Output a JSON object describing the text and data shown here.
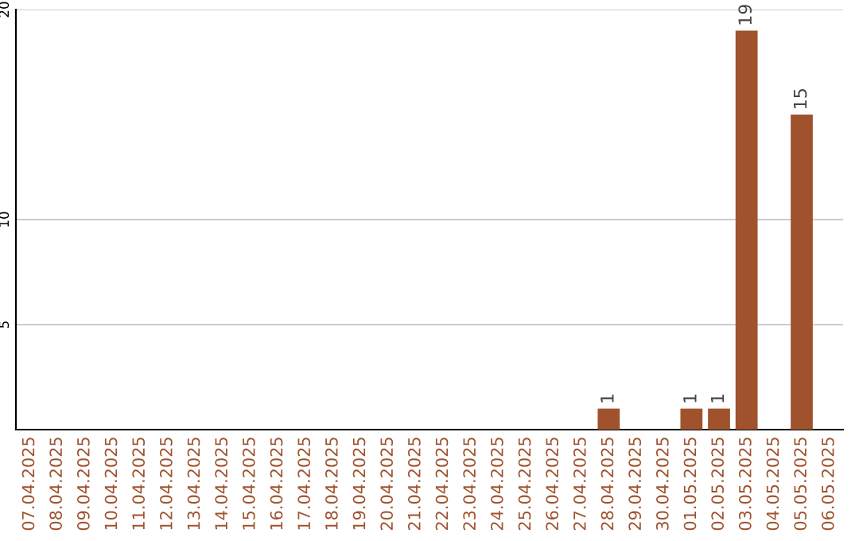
{
  "chart_data": {
    "type": "bar",
    "categories": [
      "07.04.2025",
      "08.04.2025",
      "09.04.2025",
      "10.04.2025",
      "11.04.2025",
      "12.04.2025",
      "13.04.2025",
      "14.04.2025",
      "15.04.2025",
      "16.04.2025",
      "17.04.2025",
      "18.04.2025",
      "19.04.2025",
      "20.04.2025",
      "21.04.2025",
      "22.04.2025",
      "23.04.2025",
      "24.04.2025",
      "25.04.2025",
      "26.04.2025",
      "27.04.2025",
      "28.04.2025",
      "29.04.2025",
      "30.04.2025",
      "01.05.2025",
      "02.05.2025",
      "03.05.2025",
      "04.05.2025",
      "05.05.2025",
      "06.05.2025"
    ],
    "values": [
      0,
      0,
      0,
      0,
      0,
      0,
      0,
      0,
      0,
      0,
      0,
      0,
      0,
      0,
      0,
      0,
      0,
      0,
      0,
      0,
      0,
      1,
      0,
      0,
      1,
      1,
      19,
      0,
      15,
      0
    ],
    "value_labels": [
      null,
      null,
      null,
      null,
      null,
      null,
      null,
      null,
      null,
      null,
      null,
      null,
      null,
      null,
      null,
      null,
      null,
      null,
      null,
      null,
      null,
      "1",
      null,
      null,
      "1",
      "1",
      "19",
      null,
      "15",
      null
    ],
    "color": "#a0522d",
    "ylim": [
      0,
      20
    ],
    "yticks": [
      5,
      10,
      20
    ],
    "grid": "y"
  }
}
